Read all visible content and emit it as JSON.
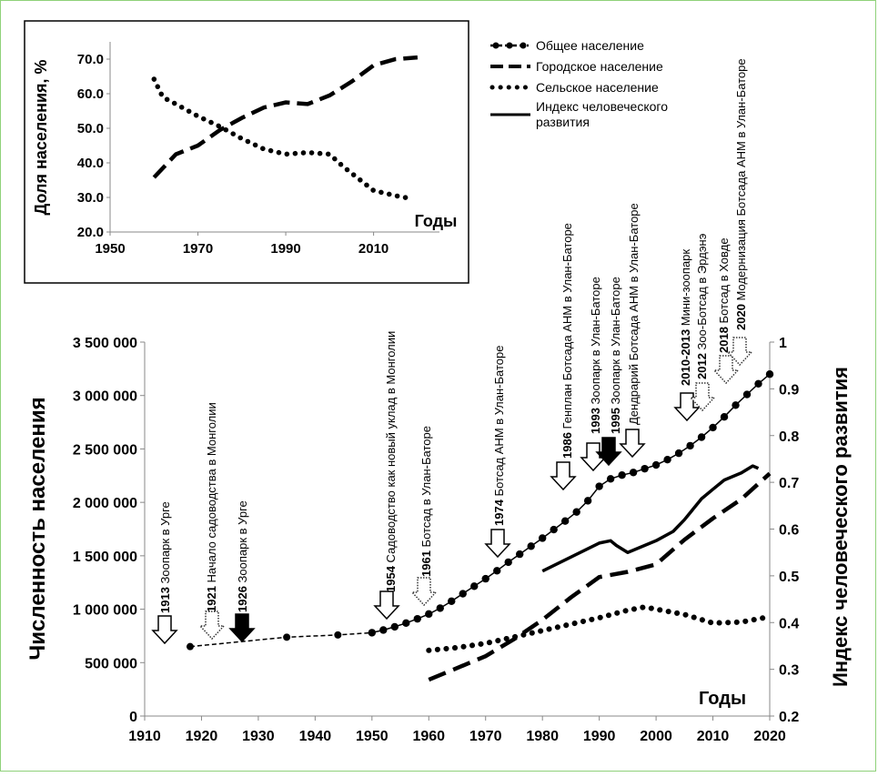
{
  "chart_data": [
    {
      "type": "line",
      "xlabel": "Годы",
      "ylabel": "Доля населения, %",
      "xlim": [
        1950,
        2025
      ],
      "ylim": [
        20,
        75
      ],
      "xticks": [
        "1950",
        "1970",
        "1990",
        "2010"
      ],
      "yticks": [
        "20.0",
        "30.0",
        "40.0",
        "50.0",
        "60.0",
        "70.0"
      ],
      "grid": false,
      "series": [
        {
          "style": "dashed",
          "x": [
            1960,
            1965,
            1970,
            1975,
            1980,
            1985,
            1990,
            1995,
            2000,
            2005,
            2010,
            2015,
            2020
          ],
          "values": [
            35.8,
            42.5,
            45.0,
            49.5,
            53.0,
            56.0,
            57.5,
            57.0,
            59.5,
            63.5,
            68.2,
            70.0,
            70.5
          ]
        },
        {
          "style": "dotted",
          "x": [
            1960,
            1962,
            1965,
            1970,
            1975,
            1980,
            1985,
            1990,
            1995,
            2000,
            2003,
            2007,
            2010,
            2015,
            2018
          ],
          "values": [
            64.2,
            59.0,
            57.0,
            53.5,
            50.5,
            47.0,
            44.0,
            42.5,
            43.0,
            42.5,
            39.0,
            35.0,
            32.0,
            30.5,
            29.8
          ]
        }
      ]
    },
    {
      "type": "line",
      "xlabel": "Годы",
      "ylabel": "Численность населения",
      "y2label": "Индекс человеческого развития",
      "xlim": [
        1910,
        2020
      ],
      "ylim": [
        0,
        3500000
      ],
      "y2lim": [
        0.2,
        1
      ],
      "xticks": [
        "1910",
        "1920",
        "1930",
        "1940",
        "1950",
        "1960",
        "1970",
        "1980",
        "1990",
        "2000",
        "2010",
        "2020"
      ],
      "yticks": [
        "0",
        "500 000",
        "1 000 000",
        "1 500 000",
        "2 000 000",
        "2 500 000",
        "3 000 000",
        "3 500 000"
      ],
      "y2ticks": [
        "0.2",
        "0.3",
        "0.4",
        "0.5",
        "0.6",
        "0.7",
        "0.8",
        "0.9",
        "1"
      ],
      "grid": false,
      "legend": {
        "position": "top-right",
        "items": [
          {
            "label": "Общее население",
            "style": "dash-dot-marker"
          },
          {
            "label": "Городское  население",
            "style": "long-dash"
          },
          {
            "label": "Сельское  население",
            "style": "dotted"
          },
          {
            "label": "Индекс человеческого развития",
            "style": "solid"
          }
        ]
      },
      "series": [
        {
          "key": "total_early",
          "style": "dashed-with-markers",
          "axis": "left",
          "x": [
            1918,
            1935,
            1944,
            1950
          ],
          "values": [
            650000,
            738000,
            759000,
            780000
          ]
        },
        {
          "key": "total",
          "style": "markers",
          "axis": "left",
          "x": [
            1950,
            1952,
            1954,
            1956,
            1958,
            1960,
            1962,
            1964,
            1966,
            1968,
            1970,
            1972,
            1974,
            1976,
            1978,
            1980,
            1982,
            1984,
            1986,
            1988,
            1990,
            1992,
            1994,
            1996,
            1998,
            2000,
            2002,
            2004,
            2006,
            2008,
            2010,
            2012,
            2014,
            2016,
            2018,
            2020
          ],
          "values": [
            780000,
            805000,
            835000,
            870000,
            910000,
            955000,
            1010000,
            1075000,
            1145000,
            1215000,
            1285000,
            1360000,
            1440000,
            1515000,
            1590000,
            1665000,
            1745000,
            1825000,
            1910000,
            2015000,
            2150000,
            2220000,
            2255000,
            2280000,
            2315000,
            2350000,
            2400000,
            2460000,
            2530000,
            2610000,
            2700000,
            2800000,
            2910000,
            3010000,
            3110000,
            3200000
          ]
        },
        {
          "key": "urban",
          "style": "long-dash",
          "axis": "left",
          "x": [
            1960,
            1965,
            1970,
            1975,
            1980,
            1985,
            1990,
            1995,
            2000,
            2005,
            2010,
            2015,
            2020
          ],
          "values": [
            340000,
            450000,
            560000,
            720000,
            900000,
            1110000,
            1300000,
            1350000,
            1420000,
            1650000,
            1850000,
            2030000,
            2270000
          ]
        },
        {
          "key": "rural",
          "style": "dotted",
          "axis": "left",
          "x": [
            1960,
            1965,
            1970,
            1975,
            1980,
            1985,
            1990,
            1995,
            1998,
            2000,
            2005,
            2010,
            2015,
            2019
          ],
          "values": [
            615000,
            640000,
            680000,
            740000,
            800000,
            860000,
            920000,
            990000,
            1020000,
            1000000,
            950000,
            870000,
            880000,
            920000
          ]
        },
        {
          "key": "hdi",
          "style": "solid",
          "axis": "right",
          "x": [
            1980,
            1985,
            1990,
            1992,
            1993,
            1995,
            2000,
            2003,
            2005,
            2008,
            2010,
            2012,
            2015,
            2017,
            2018
          ],
          "values": [
            0.51,
            0.54,
            0.57,
            0.575,
            0.565,
            0.55,
            0.575,
            0.595,
            0.62,
            0.665,
            0.685,
            0.705,
            0.72,
            0.735,
            0.73
          ]
        }
      ],
      "annotations": [
        {
          "year": "1913",
          "text": "Зоопарк в Урге",
          "arrow": "outline"
        },
        {
          "year": "1921",
          "text": "Начало садоводства в Монголии",
          "arrow": "dotted"
        },
        {
          "year": "1926",
          "text": "Зоопарк в Урге",
          "arrow": "filled"
        },
        {
          "year": "1954",
          "text": "Садоводство как новый уклад в Монголии",
          "arrow": "outline"
        },
        {
          "year": "1961",
          "text": "Ботсад в Улан-Баторе",
          "arrow": "dotted"
        },
        {
          "year": "1974",
          "text": "Ботсад АНМ в Улан-Баторе",
          "arrow": "outline"
        },
        {
          "year": "1986",
          "text": "Генплан  Ботсада АНМ в Улан-Баторе",
          "arrow": "outline"
        },
        {
          "year": "1993",
          "text": "Зоопарк в Улан-Баторе",
          "arrow": "outline"
        },
        {
          "year": "1995",
          "text": "Зоопарк в Улан-Баторе",
          "arrow": "filled"
        },
        {
          "year": "",
          "text": "Дендрарий  Ботсада АНМ в Улан-Баторе",
          "arrow": "outline"
        },
        {
          "year": "2010-2013",
          "text": "Мини-зоопарк",
          "arrow": "outline"
        },
        {
          "year": "2012",
          "text": "Зоо-Ботсад в Эрдэнэ",
          "arrow": "dotted"
        },
        {
          "year": "2018",
          "text": "Ботсад в Ховде",
          "arrow": "dotted"
        },
        {
          "year": "2020",
          "text": "Модернизация Ботсада АНМ в Улан-Баторе",
          "arrow": "dotted"
        }
      ]
    }
  ]
}
